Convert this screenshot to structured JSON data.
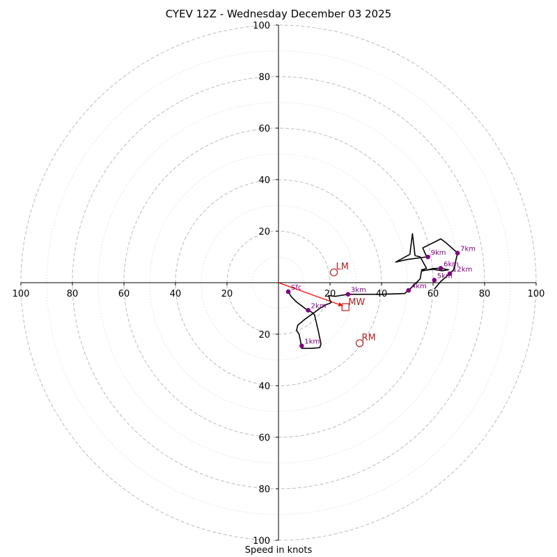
{
  "chart_data": {
    "type": "hodograph",
    "title": "CYEV 12Z - Wednesday December 03 2025",
    "xlabel": "Speed in knots",
    "range": [
      -100,
      100
    ],
    "major_rings": [
      20,
      40,
      60,
      80,
      100
    ],
    "minor_rings": [
      10,
      30,
      50,
      70,
      90
    ],
    "x_tick_labels": [
      "100",
      "80",
      "60",
      "40",
      "20",
      "20",
      "40",
      "60",
      "80",
      "100"
    ],
    "y_tick_labels": [
      "100",
      "80",
      "60",
      "40",
      "20",
      "20",
      "40",
      "60",
      "80",
      "100"
    ],
    "trace": [
      [
        3.8,
        -3.5
      ],
      [
        5,
        -5.5
      ],
      [
        7,
        -7.5
      ],
      [
        9,
        -9
      ],
      [
        11,
        -10.5
      ],
      [
        13,
        -11.5
      ],
      [
        14,
        -12.5
      ],
      [
        15.5,
        -19
      ],
      [
        16.5,
        -23.8
      ],
      [
        16,
        -25.2
      ],
      [
        13,
        -25.5
      ],
      [
        9,
        -25.5
      ],
      [
        8.5,
        -22.5
      ],
      [
        8,
        -20
      ],
      [
        7,
        -18.5
      ],
      [
        7.5,
        -16.5
      ],
      [
        10.5,
        -14
      ],
      [
        14,
        -11.5
      ],
      [
        16,
        -10
      ],
      [
        18.5,
        -8.5
      ],
      [
        20,
        -8
      ],
      [
        20.5,
        -7.5
      ],
      [
        20,
        -7
      ],
      [
        19.5,
        -5
      ],
      [
        22,
        -5.3
      ],
      [
        27,
        -4.5
      ],
      [
        33,
        -4.5
      ],
      [
        40,
        -4.5
      ],
      [
        49,
        -4.2
      ],
      [
        51,
        -2.5
      ],
      [
        55,
        1.5
      ],
      [
        55.5,
        4.5
      ],
      [
        58,
        5
      ],
      [
        60,
        5.5
      ],
      [
        63,
        5.6
      ],
      [
        66,
        5
      ],
      [
        63.5,
        4.6
      ],
      [
        60,
        5.2
      ],
      [
        57,
        4.8
      ],
      [
        55.5,
        5
      ],
      [
        57.5,
        5.5
      ],
      [
        55,
        10
      ],
      [
        53,
        10.5
      ],
      [
        52,
        19
      ],
      [
        51,
        11
      ],
      [
        45.5,
        8
      ],
      [
        50,
        9
      ],
      [
        57.5,
        10
      ],
      [
        56,
        13.5
      ],
      [
        63,
        17
      ],
      [
        65,
        15.5
      ],
      [
        69.5,
        11.5
      ],
      [
        68,
        5
      ],
      [
        66.5,
        3.5
      ],
      [
        63,
        0.5
      ],
      [
        60.5,
        -2.5
      ]
    ],
    "height_markers": [
      {
        "label": "Sfc",
        "x": 3.8,
        "y": -3.5
      },
      {
        "label": "1km",
        "x": 9,
        "y": -24.5
      },
      {
        "label": "2km",
        "x": 11.5,
        "y": -10.7
      },
      {
        "label": "3km",
        "x": 27,
        "y": -4.5
      },
      {
        "label": "4km",
        "x": 50.5,
        "y": -3
      },
      {
        "label": "5km",
        "x": 60.5,
        "y": 1
      },
      {
        "label": "6km",
        "x": 63,
        "y": 5.6
      },
      {
        "label": "7km",
        "x": 69.5,
        "y": 11.5
      },
      {
        "label": "9km",
        "x": 58,
        "y": 10
      },
      {
        "label": "12km",
        "x": 66.5,
        "y": 3.5
      }
    ],
    "motion": {
      "LM": {
        "label": "LM",
        "x": 21.5,
        "y": 4
      },
      "RM": {
        "label": "RM",
        "x": 31.5,
        "y": -23.5
      },
      "MW": {
        "label": "MW",
        "x": 26,
        "y": -9.5
      },
      "vector_start": [
        0,
        0
      ],
      "vector_end": [
        25,
        -9
      ]
    },
    "colors": {
      "trace": "#000000",
      "markers": "#800080",
      "motion": "#b22222",
      "vector": "#ff0000",
      "major_grid": "#bbbbbb",
      "minor_grid": "#d0d0d0"
    }
  }
}
